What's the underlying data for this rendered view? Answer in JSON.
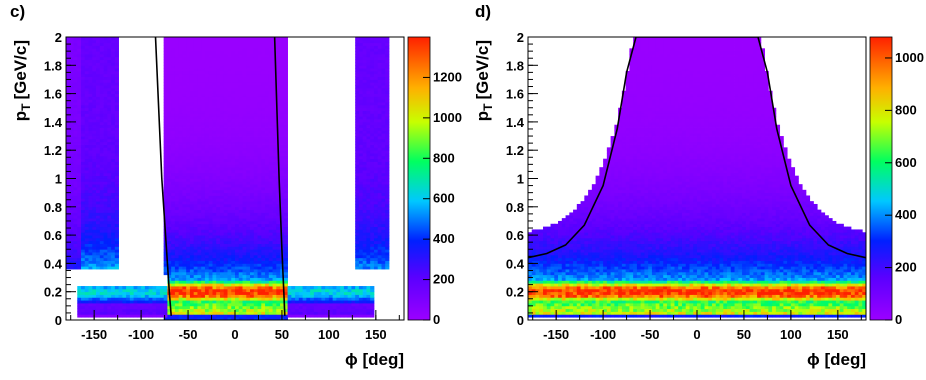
{
  "chart_data": [
    {
      "type": "heatmap",
      "panel_label": "c)",
      "xlabel": "ϕ [deg]",
      "ylabel": "p",
      "ylabel_sub": "T",
      "ylabel_unit": "[GeV/c]",
      "xlim": [
        -180,
        180
      ],
      "ylim": [
        0,
        2
      ],
      "x_ticks": [
        -150,
        -100,
        -50,
        0,
        50,
        100,
        150
      ],
      "y_ticks": [
        0,
        0.2,
        0.4,
        0.6,
        0.8,
        1,
        1.2,
        1.4,
        1.6,
        1.8,
        2
      ],
      "y_tick_labels": [
        "0",
        "0.2",
        "0.4",
        "0.6",
        "0.8",
        "1",
        "1.2",
        "1.4",
        "1.6",
        "1.8",
        "2"
      ],
      "colorbar_range": [
        0,
        1400
      ],
      "colorbar_ticks": [
        0,
        200,
        400,
        600,
        800,
        1000,
        1200
      ],
      "colorscale": "rainbow (purple-blue-cyan-green-yellow-orange-red)",
      "log_scale": false,
      "grid": false,
      "curves": [
        {
          "points": [
            [
              -85,
              2.05
            ],
            [
              -78,
              1.0
            ],
            [
              -73,
              0.5
            ],
            [
              -70,
              0.2
            ],
            [
              -68,
              0.03
            ]
          ]
        },
        {
          "points": [
            [
              42,
              2.05
            ],
            [
              47,
              1.0
            ],
            [
              50,
              0.5
            ],
            [
              52,
              0.2
            ],
            [
              53,
              0.03
            ]
          ]
        }
      ]
    },
    {
      "type": "heatmap",
      "panel_label": "d)",
      "xlabel": "ϕ [deg]",
      "ylabel": "p",
      "ylabel_sub": "T",
      "ylabel_unit": "[GeV/c]",
      "xlim": [
        -180,
        180
      ],
      "ylim": [
        0,
        2
      ],
      "x_ticks": [
        -150,
        -100,
        -50,
        0,
        50,
        100,
        150
      ],
      "y_ticks": [
        0,
        0.2,
        0.4,
        0.6,
        0.8,
        1,
        1.2,
        1.4,
        1.6,
        1.8,
        2
      ],
      "y_tick_labels": [
        "0",
        "0.2",
        "0.4",
        "0.6",
        "0.8",
        "1",
        "1.2",
        "1.4",
        "1.6",
        "1.8",
        "2"
      ],
      "colorbar_range": [
        0,
        1080
      ],
      "colorbar_ticks": [
        0,
        200,
        400,
        600,
        800,
        1000
      ],
      "colorscale": "rainbow (purple-blue-cyan-green-yellow-orange-red)",
      "log_scale": false,
      "grid": false,
      "curves": [
        {
          "points": [
            [
              -180,
              0.44
            ],
            [
              -160,
              0.47
            ],
            [
              -140,
              0.53
            ],
            [
              -120,
              0.67
            ],
            [
              -100,
              0.95
            ],
            [
              -85,
              1.35
            ],
            [
              -75,
              1.75
            ],
            [
              -65,
              2.0
            ],
            [
              65,
              2.0
            ],
            [
              75,
              1.75
            ],
            [
              85,
              1.35
            ],
            [
              100,
              0.95
            ],
            [
              120,
              0.67
            ],
            [
              140,
              0.53
            ],
            [
              160,
              0.47
            ],
            [
              180,
              0.44
            ]
          ]
        }
      ]
    }
  ]
}
